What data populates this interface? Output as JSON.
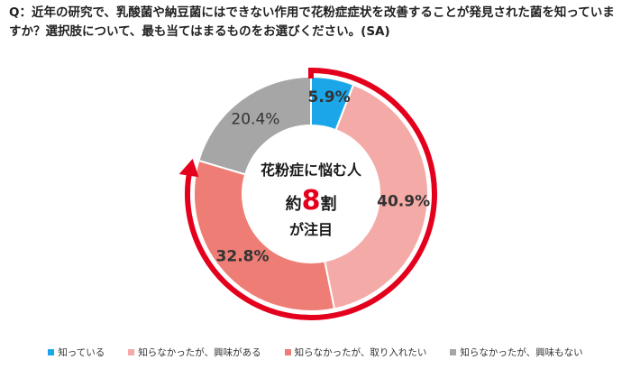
{
  "question": "Q：近年の研究で、乳酸菌や納豆菌にはできない作用で花粉症症状を改善することが発見された菌を知っていますか？選択肢について、最も当てはまるものをお選びください。(SA)",
  "center": {
    "line1": "花粉症に悩む人",
    "line2_prefix": "約",
    "line2_num": "8",
    "line2_suffix": "割",
    "line3": "が注目"
  },
  "colors": {
    "arrow": "#e4001c"
  },
  "chart_data": {
    "type": "pie",
    "donut": true,
    "start_angle_deg": 0,
    "direction": "clockwise",
    "slices": [
      {
        "label": "知っている",
        "value": 5.9,
        "value_label": "5.9%",
        "color": "#1aa6e8",
        "bold": true
      },
      {
        "label": "知らなかったが、興味がある",
        "value": 40.9,
        "value_label": "40.9%",
        "color": "#f4aaa7",
        "bold": true
      },
      {
        "label": "知らなかったが、取り入れたい",
        "value": 32.8,
        "value_label": "32.8%",
        "color": "#ee7d75",
        "bold": true
      },
      {
        "label": "知らなかったが、興味もない",
        "value": 20.4,
        "value_label": "20.4%",
        "color": "#a6a6a6",
        "bold": false
      }
    ],
    "legend_position": "bottom"
  }
}
